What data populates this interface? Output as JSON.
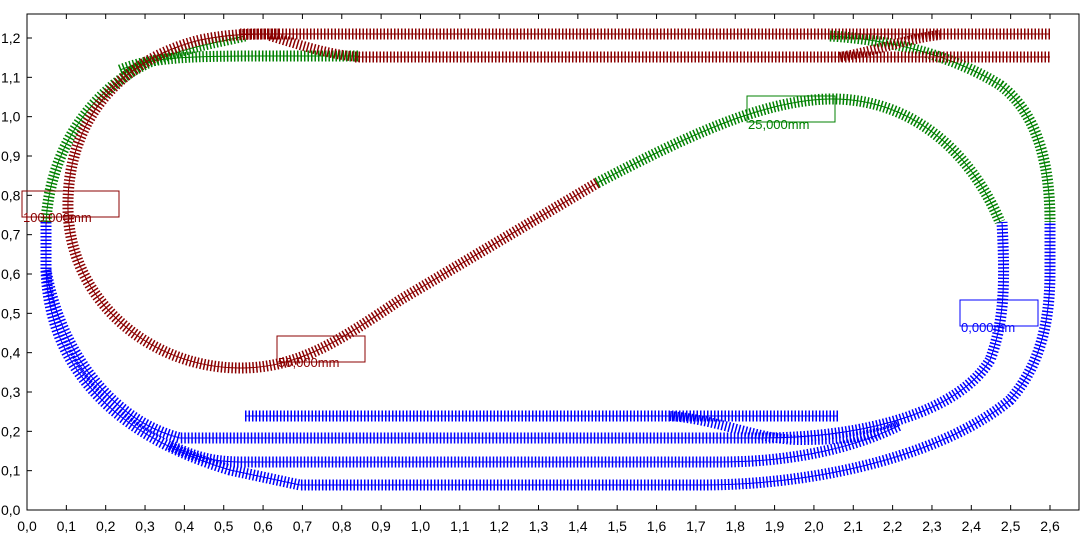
{
  "colors": {
    "background": "#ffffff",
    "frame": "#000000",
    "level_0mm": "#0000ff",
    "level_25mm": "#008000",
    "level_50mm": "#8b0000",
    "level_100mm": "#8b0000"
  },
  "axes": {
    "y_ticks": [
      "0,0",
      "0,1",
      "0,2",
      "0,3",
      "0,4",
      "0,5",
      "0,6",
      "0,7",
      "0,8",
      "0,9",
      "1,0",
      "1,1",
      "1,2"
    ],
    "x_ticks": [
      "0,0",
      "0,1",
      "0,2",
      "0,3",
      "0,4",
      "0,5",
      "0,6",
      "0,7",
      "0,8",
      "0,9",
      "1,0",
      "1,1",
      "1,2",
      "1,3",
      "1,4",
      "1,5",
      "1,6",
      "1,7",
      "1,8",
      "1,9",
      "2,0",
      "2,1",
      "2,2",
      "2,3",
      "2,4",
      "2,5",
      "2,6"
    ]
  },
  "height_labels": [
    {
      "id": "label-0mm",
      "text": "0,000mm",
      "color": "#0000ff"
    },
    {
      "id": "label-25mm",
      "text": "25,000mm",
      "color": "#008000"
    },
    {
      "id": "label-50mm",
      "text": "50,000mm",
      "color": "#8b0000"
    },
    {
      "id": "label-100mm",
      "text": "100,000mm",
      "color": "#8b0000"
    }
  ]
}
